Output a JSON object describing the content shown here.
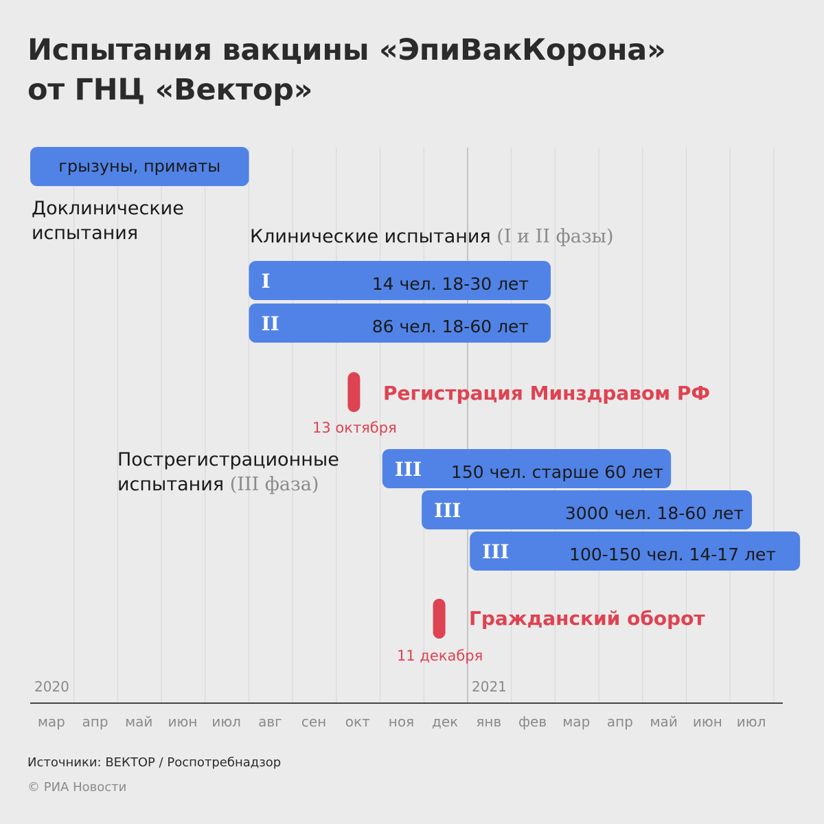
{
  "title_line1": "Испытания вакцины «ЭпиВакКорона»",
  "title_line2": "от ГНЦ «Вектор»",
  "labels": {
    "preclinical": [
      "Доклинические",
      "испытания"
    ],
    "clinical_main": "Клинические испытания",
    "clinical_muted": "(I и II фазы)",
    "postreg_line1": "Пострегистрационные",
    "postreg_main": "испытания",
    "postreg_muted": "(III фаза)"
  },
  "footer": {
    "source": "Источники: ВЕКТОР / Роспотребнадзор",
    "copyright": "© РИА Новости"
  },
  "colors": {
    "bar": "#5183e6",
    "event": "#de4352",
    "grid": "#d6d6d6",
    "axis": "#444444",
    "tick_text": "#8a8a8a",
    "background": "#ebebeb"
  },
  "chart_data": {
    "type": "gantt",
    "months": [
      "мар",
      "апр",
      "май",
      "июн",
      "июл",
      "авг",
      "сен",
      "окт",
      "ноя",
      "дек",
      "янв",
      "фев",
      "мар",
      "апр",
      "май",
      "июн",
      "июл"
    ],
    "year_labels": [
      {
        "label": "2020",
        "month_index": 0
      },
      {
        "label": "2021",
        "month_index": 10
      }
    ],
    "bars": [
      {
        "group": "preclinical",
        "phase": "",
        "label": "грызуны, приматы",
        "start": 0,
        "end": 5
      },
      {
        "group": "clinical",
        "phase": "I",
        "label": "14 чел. 18-30 лет",
        "start": 5,
        "end": 11.9
      },
      {
        "group": "clinical",
        "phase": "II",
        "label": "86 чел. 18-60 лет",
        "start": 5,
        "end": 11.9
      },
      {
        "group": "postregistration",
        "phase": "III",
        "label": "150 чел. старше 60 лет",
        "start": 8.05,
        "end": 14.65
      },
      {
        "group": "postregistration",
        "phase": "III",
        "label": "3000 чел. 18-60 лет",
        "start": 8.95,
        "end": 16.5
      },
      {
        "group": "postregistration",
        "phase": "III",
        "label": "100-150 чел. 14-17 лет",
        "start": 10.05,
        "end": 17.6
      }
    ],
    "events": [
      {
        "label": "Регистрация Минздравом РФ",
        "date": "13 октября",
        "month_pos": 7.4
      },
      {
        "label": "Гражданский оборот",
        "date": "11 декабря",
        "month_pos": 9.35
      }
    ]
  }
}
